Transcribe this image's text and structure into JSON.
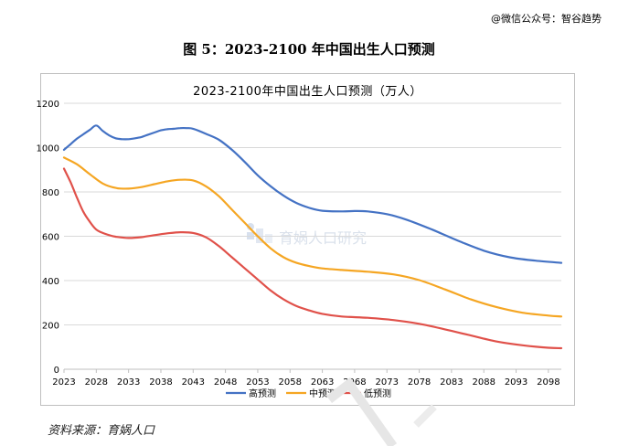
{
  "header": {
    "wechat": "@微信公众号：智谷趋势"
  },
  "figure_title": "图 5：2023-2100 年中国出生人口预测",
  "source": "资料来源：育娲人口",
  "watermark": "育娲人口研究",
  "colors": {
    "high": "#4472c4",
    "mid": "#f5a623",
    "low": "#e0514a",
    "grid": "#d9d9d9",
    "axis": "#bfbfbf"
  },
  "chart_data": {
    "type": "line",
    "title": "2023-2100年中国出生人口预测（万人）",
    "xlabel": "",
    "ylabel": "",
    "ylim": [
      0,
      1200
    ],
    "yticks": [
      0,
      200,
      400,
      600,
      800,
      1000,
      1200
    ],
    "xrange": [
      2023,
      2100
    ],
    "xticks": [
      "2023",
      "2028",
      "2033",
      "2038",
      "2043",
      "2048",
      "2053",
      "2058",
      "2063",
      "2068",
      "2073",
      "2078",
      "2083",
      "2088",
      "2093",
      "2098"
    ],
    "grid": "horizontal",
    "legend_position": "bottom",
    "series": [
      {
        "name": "高预测",
        "color": "#4472c4",
        "x": [
          2023,
          2024,
          2025,
          2026,
          2027,
          2028,
          2029,
          2030,
          2031,
          2032,
          2033,
          2034,
          2035,
          2036,
          2037,
          2038,
          2039,
          2040,
          2041,
          2042,
          2043,
          2045,
          2047,
          2049,
          2051,
          2053,
          2055,
          2057,
          2059,
          2061,
          2063,
          2066,
          2068,
          2070,
          2073,
          2076,
          2080,
          2084,
          2088,
          2092,
          2096,
          2100
        ],
        "y": [
          990,
          1015,
          1040,
          1060,
          1080,
          1100,
          1075,
          1055,
          1042,
          1038,
          1038,
          1042,
          1048,
          1058,
          1068,
          1078,
          1083,
          1085,
          1088,
          1088,
          1085,
          1062,
          1035,
          990,
          935,
          875,
          825,
          783,
          750,
          728,
          715,
          712,
          714,
          712,
          700,
          675,
          630,
          580,
          535,
          505,
          490,
          480
        ]
      },
      {
        "name": "中预测",
        "color": "#f5a623",
        "x": [
          2023,
          2025,
          2027,
          2029,
          2031,
          2033,
          2035,
          2037,
          2039,
          2041,
          2043,
          2045,
          2047,
          2049,
          2051,
          2053,
          2055,
          2057,
          2059,
          2061,
          2063,
          2066,
          2070,
          2074,
          2078,
          2082,
          2086,
          2090,
          2094,
          2098,
          2100
        ],
        "y": [
          955,
          925,
          880,
          838,
          818,
          815,
          822,
          835,
          848,
          855,
          852,
          825,
          780,
          720,
          660,
          600,
          545,
          505,
          480,
          465,
          455,
          448,
          440,
          428,
          402,
          360,
          315,
          280,
          255,
          242,
          238
        ]
      },
      {
        "name": "低预测",
        "color": "#e0514a",
        "x": [
          2023,
          2024,
          2025,
          2026,
          2027,
          2028,
          2029,
          2030,
          2031,
          2033,
          2035,
          2037,
          2039,
          2041,
          2043,
          2045,
          2047,
          2049,
          2051,
          2053,
          2055,
          2057,
          2059,
          2061,
          2063,
          2066,
          2070,
          2074,
          2078,
          2082,
          2086,
          2090,
          2094,
          2098,
          2100
        ],
        "y": [
          905,
          845,
          775,
          710,
          665,
          630,
          615,
          605,
          598,
          592,
          596,
          605,
          613,
          618,
          615,
          595,
          555,
          505,
          455,
          405,
          355,
          315,
          285,
          265,
          250,
          238,
          232,
          222,
          205,
          180,
          152,
          125,
          108,
          97,
          95
        ]
      }
    ]
  }
}
